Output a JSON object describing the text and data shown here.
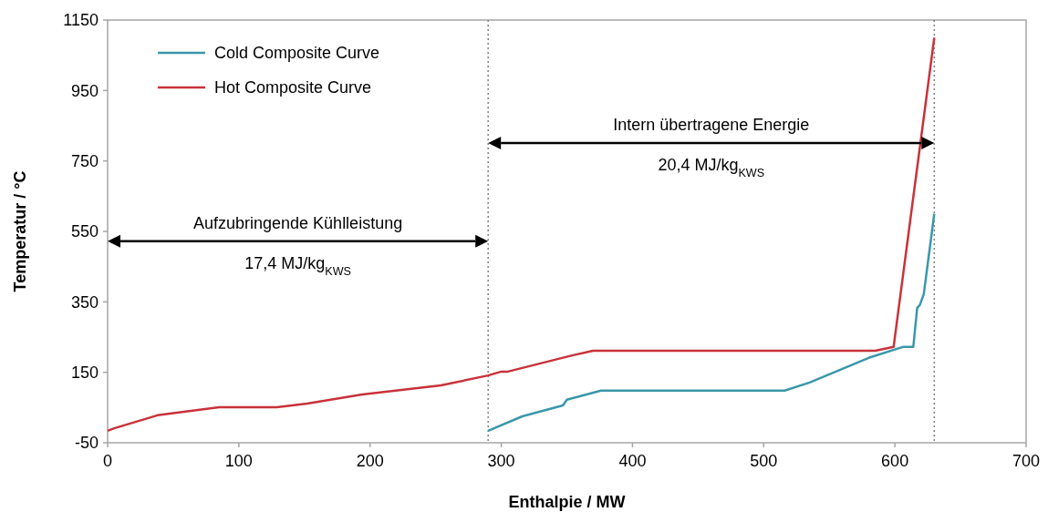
{
  "chart_data": {
    "type": "line",
    "xlabel": "Enthalpie / MW",
    "ylabel": "Temperatur / °C",
    "xlim": [
      0,
      700
    ],
    "xticks": [
      0,
      100,
      200,
      300,
      400,
      500,
      600,
      700
    ],
    "ylim": [
      -50,
      1150
    ],
    "yticks": [
      -50,
      150,
      350,
      550,
      750,
      950,
      1150
    ],
    "grid": false,
    "legend": "top left",
    "marker": "none",
    "line_style": "solid",
    "series": [
      {
        "name": "Cold Composite Curve",
        "color": "#3a97aa",
        "x": [
          290,
          316,
          347,
          350,
          376,
          516,
          535,
          580,
          606,
          614,
          617,
          619,
          622,
          630
        ],
        "values": [
          -16,
          25,
          56,
          72,
          98,
          98,
          121,
          191,
          222,
          222,
          333,
          341,
          372,
          600
        ]
      },
      {
        "name": "Hot Composite Curve",
        "color": "#c8323a",
        "x": [
          0,
          5,
          38,
          85,
          129,
          152,
          194,
          254,
          290,
          300,
          305,
          354,
          370,
          585,
          599,
          630
        ],
        "values": [
          -16,
          -9,
          28,
          51,
          51,
          61,
          87,
          113,
          141,
          152,
          152,
          198,
          211,
          211,
          222,
          1100
        ]
      }
    ],
    "ref_lines": [
      {
        "axis": "x",
        "value": 290,
        "color": "#808080",
        "line_style": "dotted"
      },
      {
        "axis": "x",
        "value": 630,
        "color": "#808080",
        "line_style": "dotted"
      }
    ],
    "annotations": [
      "Aufzubringende Kühlleistung",
      "17,4 MJ/kg$_{KWS}$",
      "Intern übertragene Energie",
      "20,4 MJ/kg$_{KWS}$"
    ]
  }
}
